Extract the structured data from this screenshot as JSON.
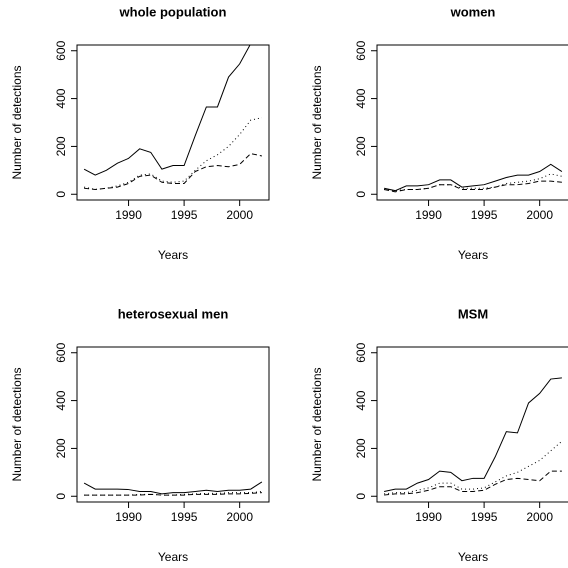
{
  "chart_data": [
    {
      "type": "line",
      "title": "whole population",
      "x_label": "Years",
      "y_label": "Number of detections",
      "x": [
        1986,
        1987,
        1988,
        1989,
        1990,
        1991,
        1992,
        1993,
        1994,
        1995,
        1996,
        1997,
        1998,
        1999,
        2000,
        2001,
        2002
      ],
      "xlim": [
        1985.36,
        2002.64
      ],
      "xticks": [
        1990,
        1995,
        2000
      ],
      "ylim": [
        -24,
        624
      ],
      "yticks": [
        0,
        200,
        400,
        600
      ],
      "series": [
        {
          "color": "#000000",
          "dash": "solid",
          "values": [
            105,
            80,
            100,
            130,
            150,
            190,
            175,
            105,
            120,
            120,
            245,
            365,
            365,
            490,
            545,
            630,
            700
          ]
        },
        {
          "color": "#000000",
          "dash": "dotted",
          "values": [
            30,
            20,
            25,
            35,
            50,
            80,
            85,
            55,
            50,
            55,
            100,
            140,
            165,
            200,
            250,
            310,
            320
          ]
        },
        {
          "color": "#000000",
          "dash": "dashed",
          "values": [
            25,
            20,
            25,
            30,
            45,
            75,
            80,
            50,
            45,
            45,
            95,
            115,
            120,
            115,
            125,
            170,
            160
          ]
        }
      ]
    },
    {
      "type": "line",
      "title": "women",
      "x_label": "Years",
      "y_label": "Number of detections",
      "x": [
        1986,
        1987,
        1988,
        1989,
        1990,
        1991,
        1992,
        1993,
        1994,
        1995,
        1996,
        1997,
        1998,
        1999,
        2000,
        2001,
        2002
      ],
      "xlim": [
        1985.36,
        2002.64
      ],
      "xticks": [
        1990,
        1995,
        2000
      ],
      "ylim": [
        -24,
        624
      ],
      "yticks": [
        0,
        200,
        400,
        600
      ],
      "series": [
        {
          "color": "#000000",
          "dash": "solid",
          "values": [
            25,
            15,
            35,
            35,
            40,
            60,
            60,
            30,
            35,
            40,
            55,
            70,
            80,
            80,
            95,
            125,
            95
          ]
        },
        {
          "color": "#000000",
          "dash": "dotted",
          "values": [
            20,
            15,
            20,
            20,
            25,
            40,
            40,
            25,
            25,
            25,
            30,
            45,
            50,
            55,
            65,
            85,
            75
          ]
        },
        {
          "color": "#000000",
          "dash": "dashed",
          "values": [
            20,
            10,
            20,
            20,
            25,
            40,
            40,
            20,
            20,
            20,
            30,
            40,
            40,
            45,
            55,
            55,
            50
          ]
        }
      ]
    },
    {
      "type": "line",
      "title": "heterosexual men",
      "x_label": "Years",
      "y_label": "Number of detections",
      "x": [
        1986,
        1987,
        1988,
        1989,
        1990,
        1991,
        1992,
        1993,
        1994,
        1995,
        1996,
        1997,
        1998,
        1999,
        2000,
        2001,
        2002
      ],
      "xlim": [
        1985.36,
        2002.64
      ],
      "xticks": [
        1990,
        1995,
        2000
      ],
      "ylim": [
        -24,
        624
      ],
      "yticks": [
        0,
        200,
        400,
        600
      ],
      "series": [
        {
          "color": "#000000",
          "dash": "solid",
          "values": [
            55,
            30,
            30,
            30,
            28,
            20,
            20,
            10,
            15,
            15,
            20,
            25,
            20,
            25,
            25,
            30,
            60
          ]
        },
        {
          "color": "#000000",
          "dash": "dotted",
          "values": [
            5,
            5,
            5,
            5,
            5,
            8,
            8,
            5,
            5,
            8,
            10,
            12,
            12,
            15,
            15,
            15,
            20
          ]
        },
        {
          "color": "#000000",
          "dash": "dashed",
          "values": [
            5,
            5,
            5,
            5,
            5,
            5,
            8,
            5,
            5,
            5,
            8,
            8,
            8,
            10,
            10,
            12,
            15
          ]
        }
      ]
    },
    {
      "type": "line",
      "title": "MSM",
      "x_label": "Years",
      "y_label": "Number of detections",
      "x": [
        1986,
        1987,
        1988,
        1989,
        1990,
        1991,
        1992,
        1993,
        1994,
        1995,
        1996,
        1997,
        1998,
        1999,
        2000,
        2001,
        2002
      ],
      "xlim": [
        1985.36,
        2002.64
      ],
      "xticks": [
        1990,
        1995,
        2000
      ],
      "ylim": [
        -24,
        624
      ],
      "yticks": [
        0,
        200,
        400,
        600
      ],
      "series": [
        {
          "color": "#000000",
          "dash": "solid",
          "values": [
            20,
            30,
            30,
            55,
            70,
            105,
            100,
            65,
            75,
            75,
            165,
            270,
            265,
            390,
            430,
            490,
            495
          ]
        },
        {
          "color": "#000000",
          "dash": "dotted",
          "values": [
            10,
            15,
            15,
            25,
            35,
            55,
            55,
            30,
            30,
            35,
            60,
            85,
            100,
            125,
            150,
            190,
            230
          ]
        },
        {
          "color": "#000000",
          "dash": "dashed",
          "values": [
            5,
            10,
            10,
            15,
            25,
            40,
            40,
            20,
            20,
            25,
            50,
            70,
            75,
            70,
            65,
            105,
            105
          ]
        }
      ]
    }
  ]
}
